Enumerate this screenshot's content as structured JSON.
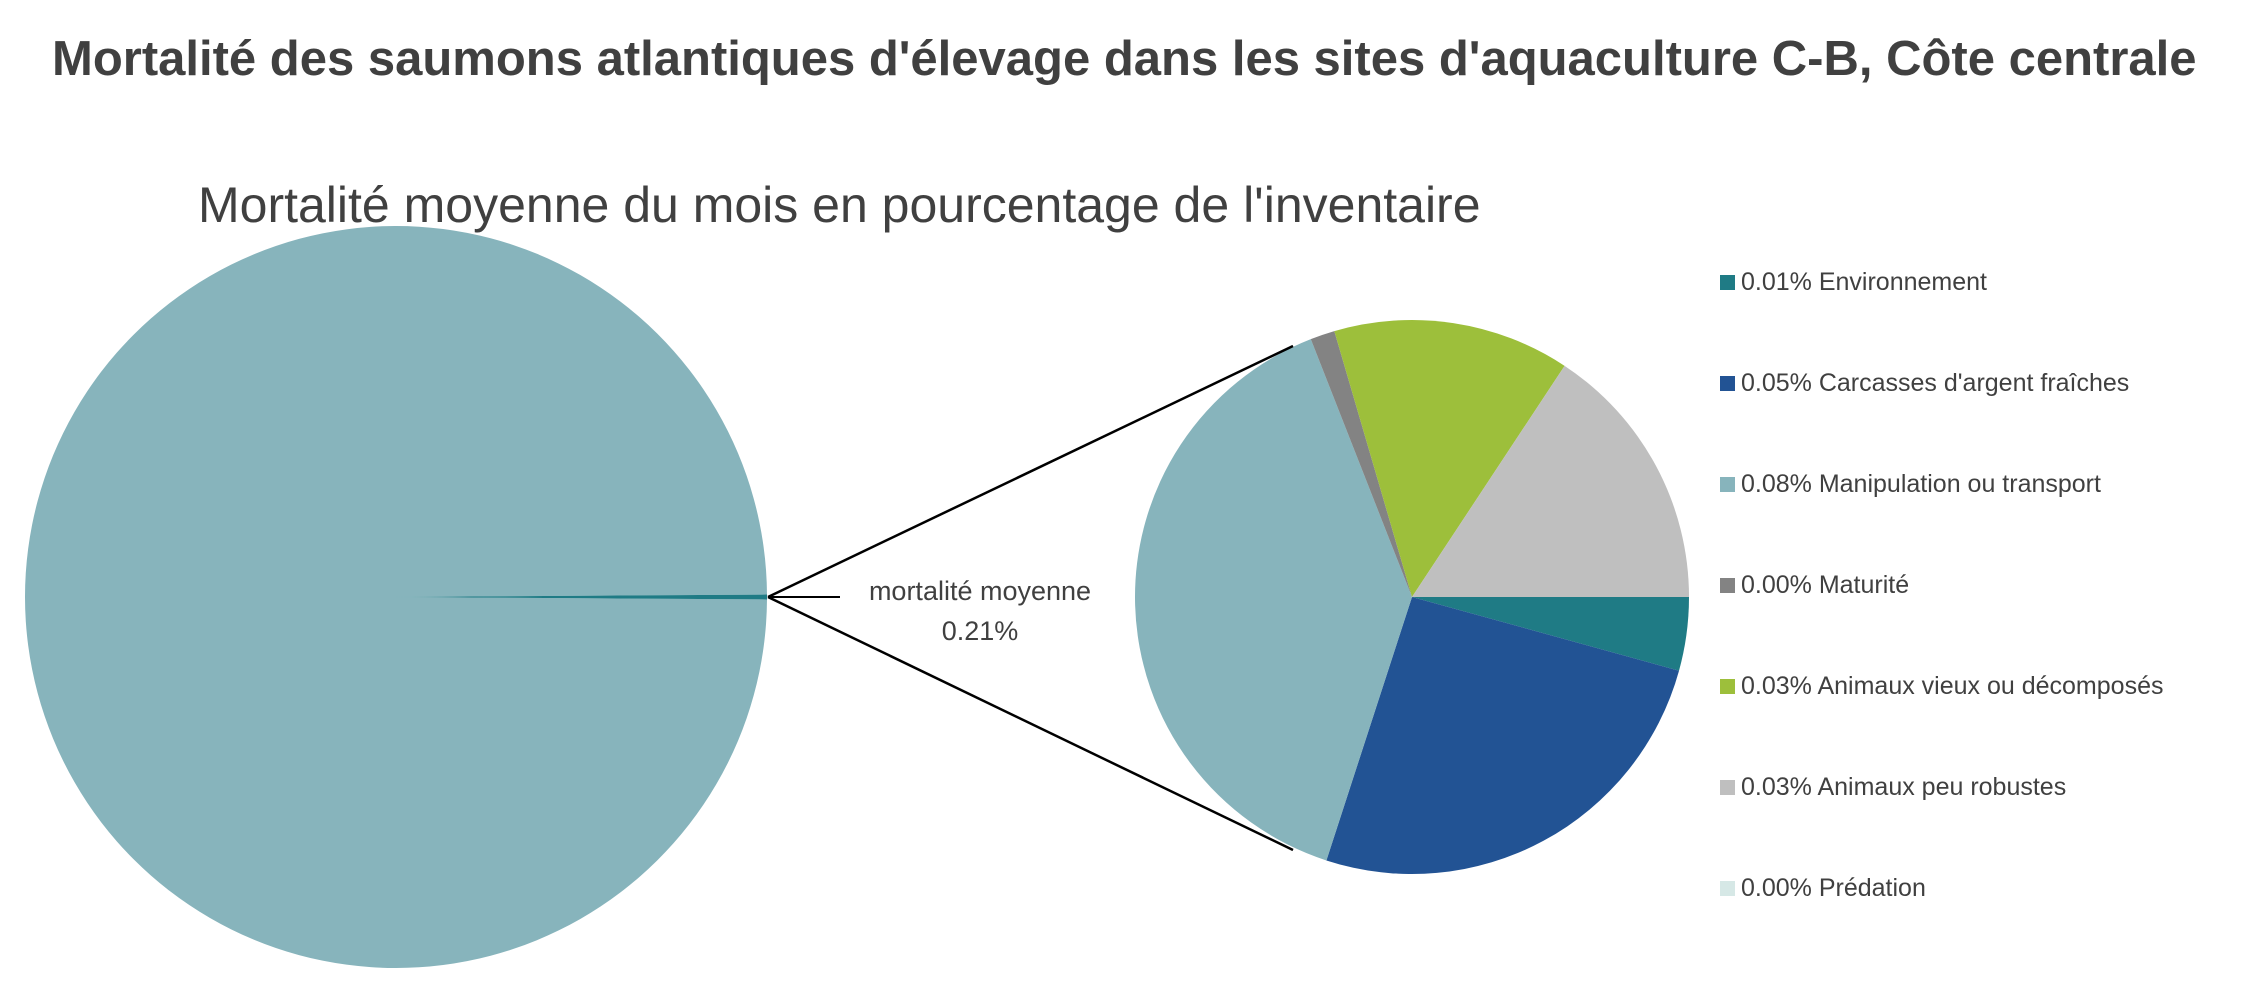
{
  "title": "Mortalité des saumons atlantiques d'élevage dans les sites d'aquaculture C-B, Côte centrale",
  "chart_data": {
    "type": "pie",
    "subtitle": "Mortalité moyenne du mois en pourcentage de l'inventaire",
    "main_pie": {
      "slices": [
        {
          "value": 99.79,
          "color": "#87b4bc"
        },
        {
          "value": 0.21,
          "color": "#1f7b85"
        }
      ]
    },
    "callout": {
      "label": "mortalité moyenne",
      "value": "0.21%"
    },
    "breakdown": [
      {
        "label": "0.01% Environnement",
        "value": 0.009,
        "color": "#1f7b85"
      },
      {
        "label": "0.05% Carcasses d'argent fraîches",
        "value": 0.054,
        "color": "#225394"
      },
      {
        "label": "0.08% Manipulation ou transport",
        "value": 0.082,
        "color": "#87b4bc"
      },
      {
        "label": "0.00% Maturité",
        "value": 0.003,
        "color": "#838383"
      },
      {
        "label": "0.03% Animaux vieux ou décomposés",
        "value": 0.029,
        "color": "#9dbf3b"
      },
      {
        "label": "0.03% Animaux peu robustes",
        "value": 0.033,
        "color": "#bfbfbf"
      },
      {
        "label": "0.00% Prédation",
        "value": 0.0,
        "color": "#d6e8e6"
      }
    ],
    "legend_position": "right"
  }
}
